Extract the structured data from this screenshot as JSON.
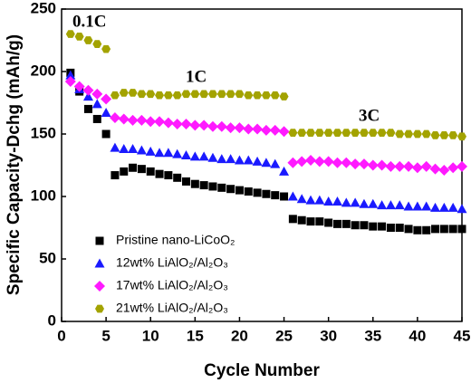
{
  "chart_data": {
    "type": "scatter",
    "x_label": "Cycle Number",
    "y_label": "Specific Capacity-Dchg (mAh/g)",
    "annotations": [
      "0.1C",
      "1C",
      "3C"
    ],
    "xlim": [
      0,
      45
    ],
    "xticks": [
      0,
      5,
      10,
      15,
      20,
      25,
      30,
      35,
      40,
      45
    ],
    "ylim": [
      0,
      250
    ],
    "yticks": [
      0,
      50,
      100,
      150,
      200,
      250
    ],
    "x": [
      1,
      2,
      3,
      4,
      5,
      6,
      7,
      8,
      9,
      10,
      11,
      12,
      13,
      14,
      15,
      16,
      17,
      18,
      19,
      20,
      21,
      22,
      23,
      24,
      25,
      26,
      27,
      28,
      29,
      30,
      31,
      32,
      33,
      34,
      35,
      36,
      37,
      38,
      39,
      40,
      41,
      42,
      43,
      44,
      45
    ],
    "series": [
      {
        "name": "Pristine nano-LiCoO₂",
        "color": "#000000",
        "marker": "square",
        "values": [
          199,
          184,
          170,
          162,
          150,
          117,
          120,
          123,
          122,
          120,
          118,
          117,
          115,
          112,
          110,
          109,
          108,
          107,
          106,
          105,
          104,
          103,
          102,
          101,
          100,
          82,
          81,
          80,
          80,
          79,
          78,
          78,
          77,
          77,
          76,
          76,
          75,
          75,
          74,
          73,
          73,
          74,
          74,
          74,
          74
        ]
      },
      {
        "name": "12wt% LiAlO₂/Al₂O₃",
        "color": "#1a1aff",
        "marker": "triangle",
        "values": [
          197,
          186,
          180,
          174,
          167,
          139,
          138,
          138,
          137,
          136,
          135,
          135,
          134,
          133,
          132,
          132,
          131,
          130,
          130,
          129,
          129,
          128,
          127,
          126,
          120,
          100,
          98,
          97,
          97,
          96,
          96,
          95,
          95,
          94,
          94,
          93,
          93,
          93,
          92,
          92,
          92,
          91,
          91,
          91,
          90
        ]
      },
      {
        "name": "17wt% LiAlO₂/Al₂O₃",
        "color": "#ff1aff",
        "marker": "diamond",
        "values": [
          192,
          188,
          185,
          182,
          178,
          163,
          162,
          161,
          161,
          160,
          160,
          159,
          158,
          158,
          157,
          157,
          156,
          156,
          155,
          155,
          154,
          154,
          153,
          153,
          152,
          127,
          128,
          129,
          128,
          128,
          127,
          127,
          126,
          126,
          125,
          125,
          124,
          124,
          124,
          123,
          124,
          122,
          121,
          123,
          124
        ]
      },
      {
        "name": "21wt% LiAlO₂/Al₂O₃",
        "color": "#a3a300",
        "marker": "hexagon",
        "values": [
          230,
          228,
          225,
          222,
          218,
          181,
          183,
          183,
          182,
          182,
          181,
          181,
          181,
          182,
          182,
          182,
          182,
          182,
          182,
          182,
          181,
          181,
          181,
          181,
          180,
          151,
          151,
          151,
          151,
          151,
          151,
          151,
          151,
          151,
          151,
          151,
          151,
          150,
          150,
          150,
          150,
          149,
          149,
          149,
          148
        ]
      }
    ]
  }
}
